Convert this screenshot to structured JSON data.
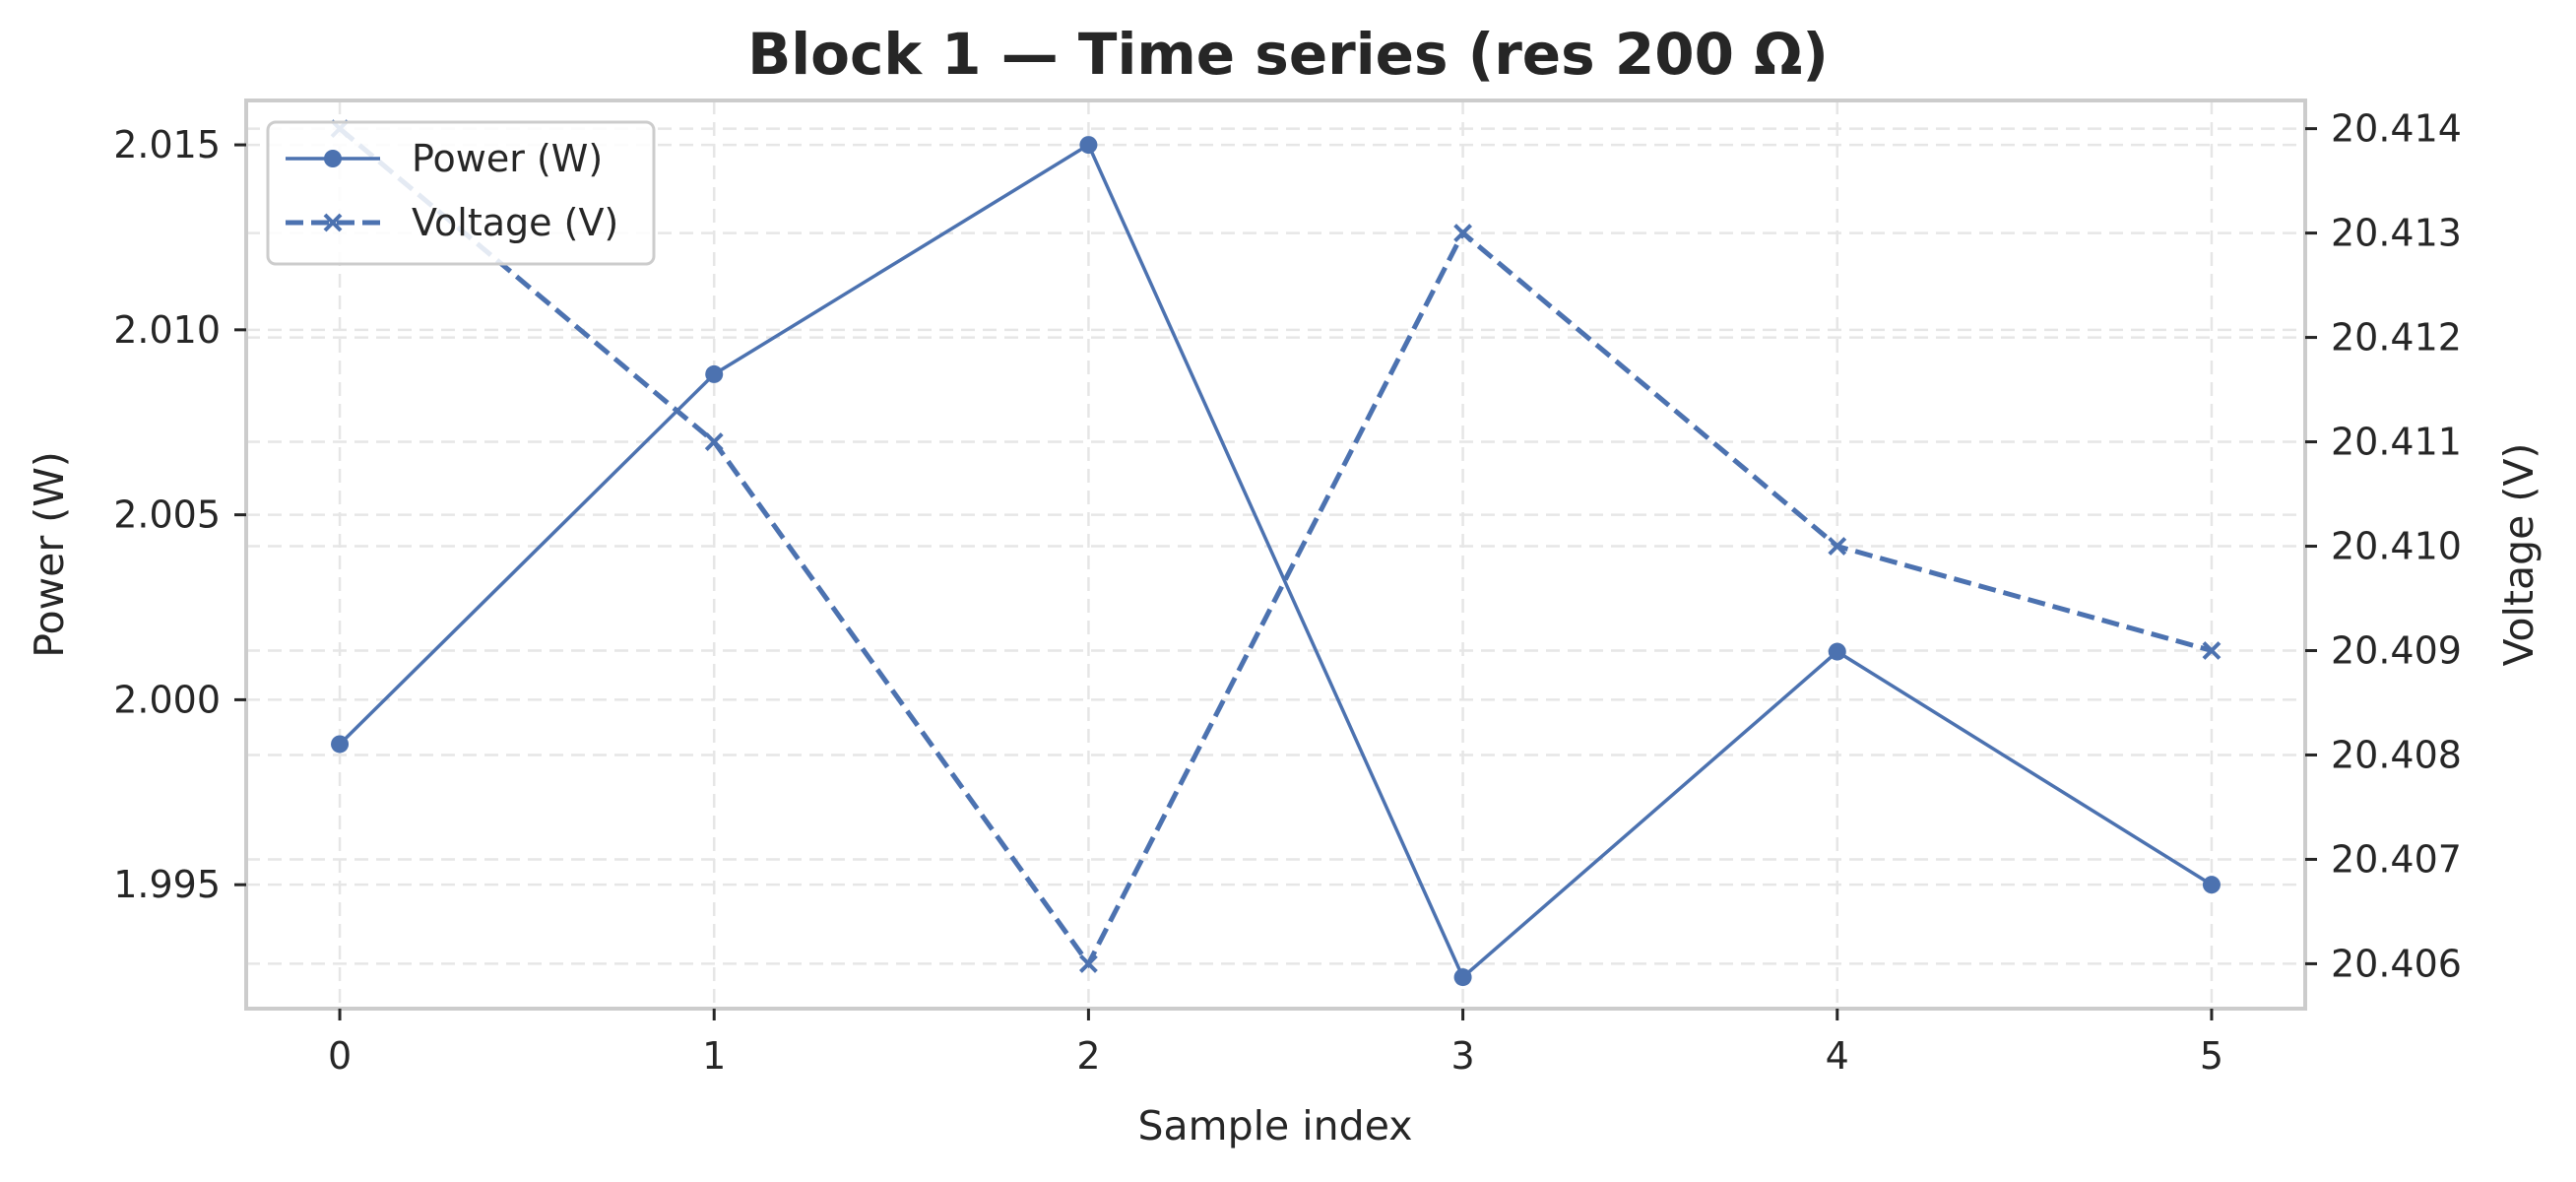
{
  "chart_data": {
    "type": "line",
    "title": "Block 1 — Time series (res 200 Ω)",
    "xlabel": "Sample index",
    "ylabel_left": "Power (W)",
    "ylabel_right": "Voltage (V)",
    "x": [
      0,
      1,
      2,
      3,
      4,
      5
    ],
    "x_ticks": [
      "0",
      "1",
      "2",
      "3",
      "4",
      "5"
    ],
    "xlim": [
      -0.25,
      5.25
    ],
    "ylim_left": [
      1.99165,
      2.0162
    ],
    "ylim_right": [
      20.40557,
      20.41427
    ],
    "yticks_left": [
      "1.995",
      "2.000",
      "2.005",
      "2.010",
      "2.015"
    ],
    "yticks_left_values": [
      1.995,
      2.0,
      2.005,
      2.01,
      2.015
    ],
    "yticks_right": [
      "20.406",
      "20.407",
      "20.408",
      "20.409",
      "20.410",
      "20.411",
      "20.412",
      "20.413",
      "20.414"
    ],
    "yticks_right_values": [
      20.406,
      20.407,
      20.408,
      20.409,
      20.41,
      20.411,
      20.412,
      20.413,
      20.414
    ],
    "grid": true,
    "legend_position": "top-left",
    "series": [
      {
        "name": "Power (W)",
        "axis": "left",
        "marker": "circle",
        "linestyle": "solid",
        "color": "#4c72b0",
        "values": [
          1.9988,
          2.0088,
          2.015,
          1.9925,
          2.0013,
          1.995
        ]
      },
      {
        "name": "Voltage (V)",
        "axis": "right",
        "marker": "x",
        "linestyle": "dashed",
        "color": "#4c72b0",
        "values": [
          20.414,
          20.411,
          20.406,
          20.413,
          20.41,
          20.409
        ]
      }
    ]
  }
}
